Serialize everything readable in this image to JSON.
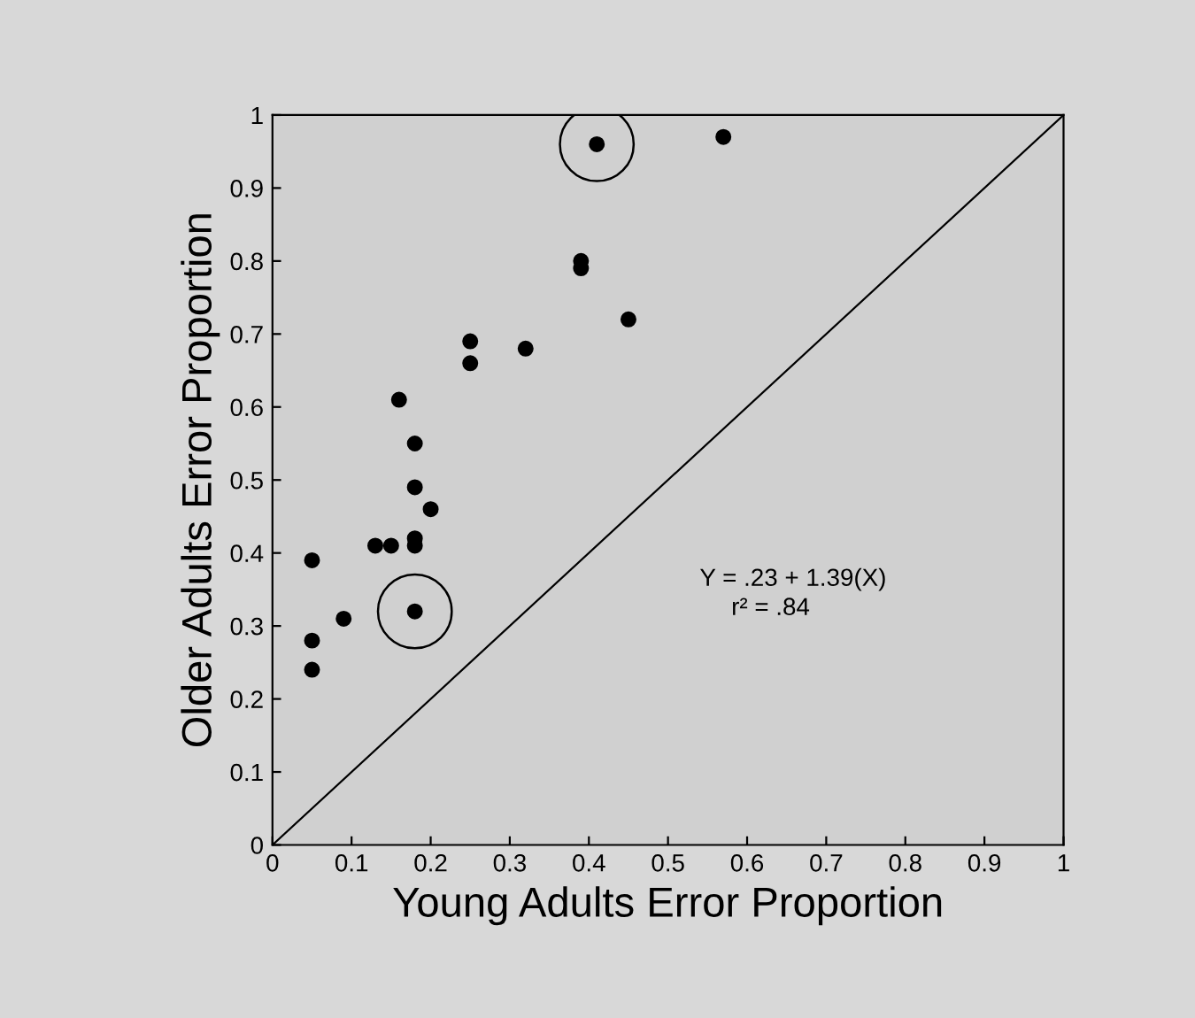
{
  "chart_data": {
    "type": "scatter",
    "xlabel": "Young Adults Error Proportion",
    "ylabel": "Older Adults Error Proportion",
    "xlim": [
      0,
      1
    ],
    "ylim": [
      0,
      1
    ],
    "xticks": [
      0,
      0.1,
      0.2,
      0.3,
      0.4,
      0.5,
      0.6,
      0.7,
      0.8,
      0.9,
      1
    ],
    "yticks": [
      0,
      0.1,
      0.2,
      0.3,
      0.4,
      0.5,
      0.6,
      0.7,
      0.8,
      0.9,
      1
    ],
    "grid": false,
    "series": [
      {
        "marker": "circle",
        "color": "#000000",
        "x": [
          0.05,
          0.05,
          0.05,
          0.09,
          0.13,
          0.15,
          0.16,
          0.18,
          0.18,
          0.18,
          0.18,
          0.18,
          0.2,
          0.25,
          0.25,
          0.32,
          0.39,
          0.39,
          0.41,
          0.45,
          0.57
        ],
        "values": [
          0.39,
          0.28,
          0.24,
          0.31,
          0.41,
          0.41,
          0.61,
          0.55,
          0.49,
          0.42,
          0.41,
          0.32,
          0.46,
          0.69,
          0.66,
          0.68,
          0.8,
          0.79,
          0.96,
          0.72,
          0.97
        ]
      },
      {
        "type": "bubble",
        "marker": "circle",
        "color": "#000000",
        "x": [
          0.18,
          0.41
        ],
        "values": [
          0.32,
          0.96
        ],
        "sizes": [
          1,
          1
        ]
      },
      {
        "type": "line",
        "marker": "none",
        "line_style": "solid",
        "color": "#000000",
        "x": [
          0,
          1
        ],
        "values": [
          0,
          1
        ]
      }
    ],
    "annotations": [
      "Y = .23 + 1.39(X)",
      "r² = .84"
    ]
  }
}
